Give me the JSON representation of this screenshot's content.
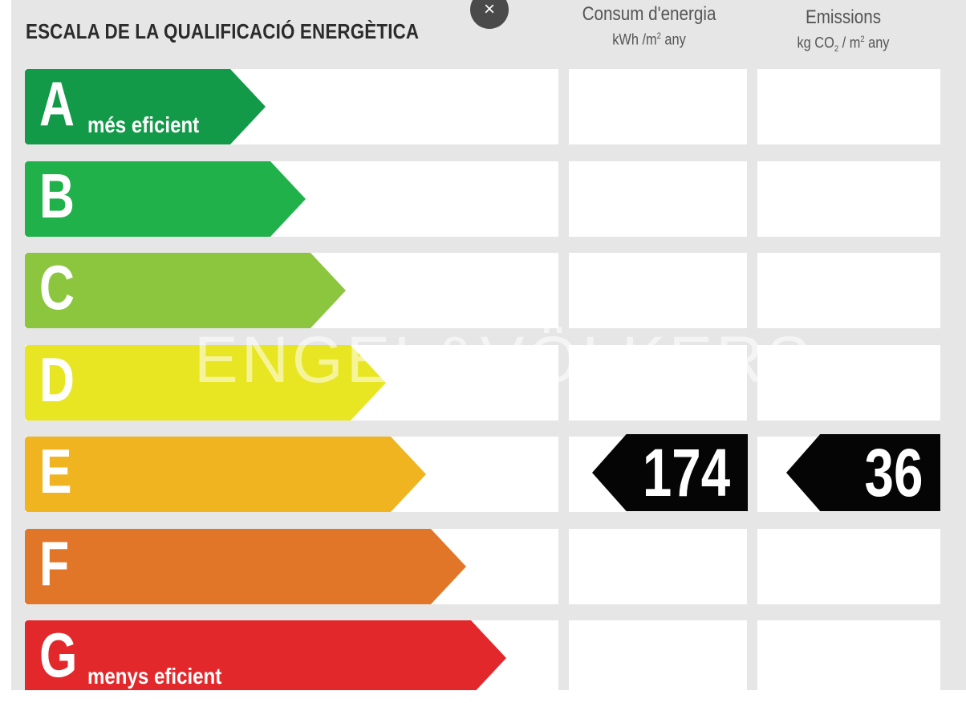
{
  "title": "ESCALA DE LA QUALIFICACIÓ ENERGÈTICA",
  "columns": {
    "energy": {
      "heading": "Consum d'energia",
      "unit_pre": "kWh /m",
      "unit_sup": "2",
      "unit_post": " any"
    },
    "co2": {
      "heading": "Emissions",
      "unit_pre": "kg CO",
      "unit_sub": "2",
      "unit_mid": " / m",
      "unit_sup": "2",
      "unit_post": " any"
    }
  },
  "classes": [
    {
      "letter": "A",
      "sub": "més eficient",
      "color": "#139a48"
    },
    {
      "letter": "B",
      "sub": "",
      "color": "#21b14b"
    },
    {
      "letter": "C",
      "sub": "",
      "color": "#8cc63f"
    },
    {
      "letter": "D",
      "sub": "",
      "color": "#e8e623"
    },
    {
      "letter": "E",
      "sub": "",
      "color": "#efb420"
    },
    {
      "letter": "F",
      "sub": "",
      "color": "#e27628"
    },
    {
      "letter": "G",
      "sub": "menys eficient",
      "color": "#e3282b"
    }
  ],
  "rating": {
    "class": "E",
    "energy_value": "174",
    "co2_value": "36"
  },
  "watermark": "ENGEL&VÖLKERS",
  "close_icon": "×"
}
